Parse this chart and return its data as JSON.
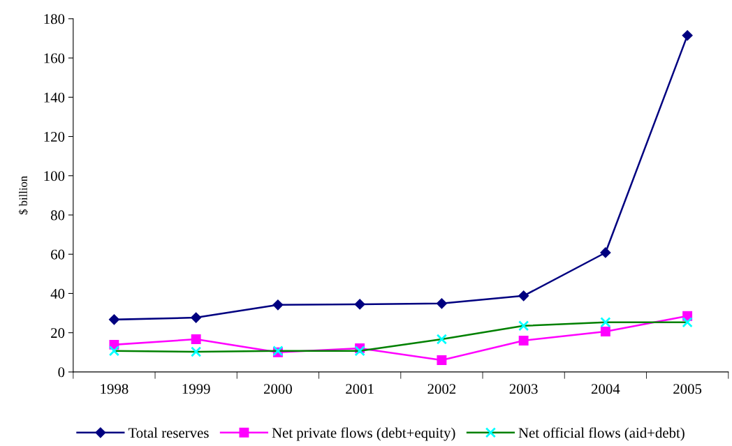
{
  "chart_data": {
    "type": "line",
    "ylabel": "$ billion",
    "categories": [
      "1998",
      "1999",
      "2000",
      "2001",
      "2002",
      "2003",
      "2004",
      "2005"
    ],
    "series": [
      {
        "name": "Total reserves",
        "color": "#000080",
        "marker": "diamond",
        "values": [
          26.7,
          27.7,
          34.2,
          34.5,
          34.9,
          38.8,
          60.8,
          171.5
        ]
      },
      {
        "name": "Net private flows (debt+equity)",
        "color": "#ff00ff",
        "marker": "square",
        "values": [
          13.9,
          16.7,
          10,
          12.1,
          6,
          16,
          20.6,
          28.5
        ]
      },
      {
        "name": "Net official flows (aid+debt)",
        "color": "#008000",
        "colors": [
          "#00ffff",
          "#00ffff",
          "#00ffff",
          "#00ffff",
          "#00ffff",
          "#00ffff",
          "#00ffff",
          "#00ffff"
        ],
        "marker": "cross",
        "values": [
          10.7,
          10.3,
          10.7,
          10.7,
          16.7,
          23.5,
          25.3,
          25.3
        ]
      }
    ],
    "ylim": [
      0,
      180
    ],
    "yticks": [
      0,
      20,
      40,
      60,
      80,
      100,
      120,
      140,
      160,
      180
    ],
    "grid": false,
    "legend": "bottom",
    "line_style": "solid"
  }
}
